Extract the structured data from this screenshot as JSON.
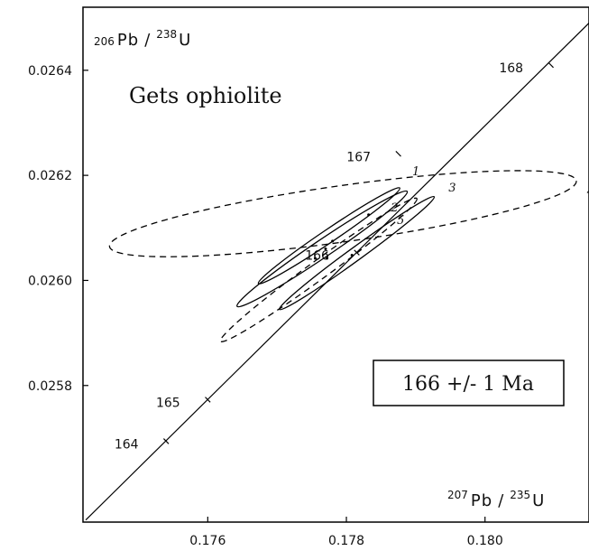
{
  "chart_data": {
    "type": "scatter",
    "title": "Gets ophiolite",
    "xlabel": {
      "iso1": "207",
      "el1": "Pb",
      "iso2": "235",
      "el2": "U"
    },
    "ylabel": {
      "iso1": "206",
      "el1": "Pb",
      "iso2": "238",
      "el2": "U"
    },
    "xlim": [
      0.1742,
      0.1815
    ],
    "ylim": [
      0.02554,
      0.02652
    ],
    "xticks": [
      {
        "value": 0.176,
        "label": "0.176"
      },
      {
        "value": 0.178,
        "label": "0.178"
      },
      {
        "value": 0.18,
        "label": "0.180"
      }
    ],
    "yticks": [
      {
        "value": 0.0258,
        "label": "0.0258"
      },
      {
        "value": 0.026,
        "label": "0.0260"
      },
      {
        "value": 0.0262,
        "label": "0.0262"
      },
      {
        "value": 0.0264,
        "label": "0.0264"
      }
    ],
    "concordia": {
      "points": [
        {
          "x": 0.17424,
          "y": 0.025544
        },
        {
          "x": 0.1817,
          "y": 0.026516
        }
      ],
      "age_ticks": [
        {
          "age": "164",
          "x": 0.1754,
          "y": 0.025694
        },
        {
          "age": "165",
          "x": 0.176,
          "y": 0.025773
        },
        {
          "age": "166",
          "x": 0.17815,
          "y": 0.026053
        },
        {
          "age": "167",
          "x": 0.17875,
          "y": 0.026241
        },
        {
          "age": "168",
          "x": 0.18095,
          "y": 0.02641
        }
      ]
    },
    "ellipses": [
      {
        "label": "1",
        "cx": 0.17775,
        "cy": 0.026085,
        "rx": 0.00123,
        "ry": 1.25e-05,
        "angle": -34,
        "style": "solid"
      },
      {
        "label": "2",
        "cx": 0.17765,
        "cy": 0.02606,
        "rx": 0.00148,
        "ry": 1.65e-05,
        "angle": -34,
        "style": "solid"
      },
      {
        "label": "3",
        "cx": 0.17815,
        "cy": 0.026052,
        "rx": 0.00138,
        "ry": 1.25e-05,
        "angle": -36,
        "style": "solid"
      },
      {
        "label": "4",
        "cx": 0.17795,
        "cy": 0.026127,
        "rx": 0.0034,
        "ry": 5.35e-05,
        "angle": -8,
        "style": "dashed"
      },
      {
        "label": "5",
        "cx": 0.1776,
        "cy": 0.02602,
        "rx": 0.00175,
        "ry": 1.78e-05,
        "angle": -36,
        "style": "dashed"
      }
    ],
    "dots": [
      {
        "x": 0.1778,
        "y": 0.026075
      },
      {
        "x": 0.1777,
        "y": 0.02606
      },
      {
        "x": 0.17755,
        "y": 0.026042
      },
      {
        "x": 0.17772,
        "y": 0.026042
      },
      {
        "x": 0.17808,
        "y": 0.026048
      },
      {
        "x": 0.17832,
        "y": 0.026125
      }
    ],
    "result_box": "166 +/- 1 Ma"
  }
}
